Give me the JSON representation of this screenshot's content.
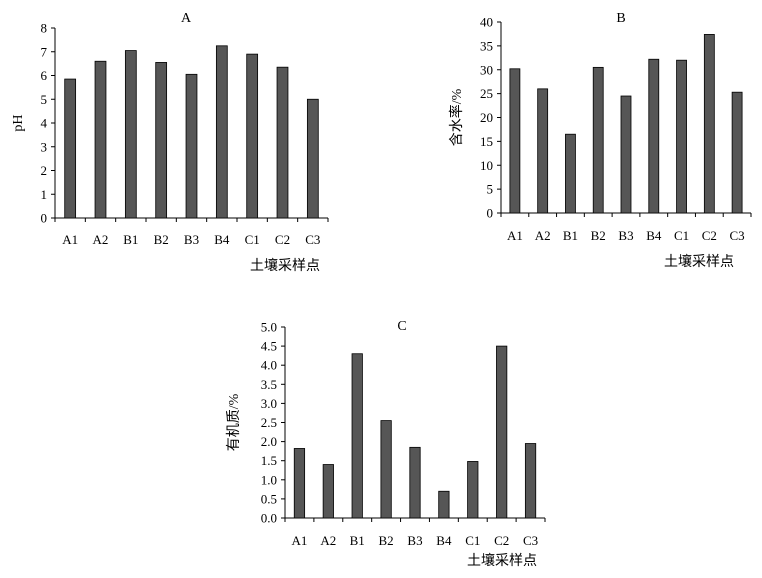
{
  "chart_data": [
    {
      "type": "bar",
      "title": "A",
      "xlabel": "土壤采样点",
      "ylabel": "pH",
      "categories": [
        "A1",
        "A2",
        "B1",
        "B2",
        "B3",
        "B4",
        "C1",
        "C2",
        "C3"
      ],
      "values": [
        5.85,
        6.6,
        7.05,
        6.55,
        6.05,
        7.25,
        6.9,
        6.35,
        5.0
      ],
      "ylim": [
        0,
        8
      ],
      "yticks": [
        "0",
        "1",
        "2",
        "3",
        "4",
        "5",
        "6",
        "7",
        "8"
      ],
      "bar_color": "#565656",
      "grid": false
    },
    {
      "type": "bar",
      "title": "B",
      "xlabel": "土壤采样点",
      "ylabel": "含水率/%",
      "categories": [
        "A1",
        "A2",
        "B1",
        "B2",
        "B3",
        "B4",
        "C1",
        "C2",
        "C3"
      ],
      "values": [
        30.2,
        26.0,
        16.5,
        30.5,
        24.5,
        32.2,
        32.0,
        37.4,
        25.3
      ],
      "ylim": [
        0,
        40
      ],
      "yticks": [
        "0",
        "5",
        "10",
        "15",
        "20",
        "25",
        "30",
        "35",
        "40"
      ],
      "bar_color": "#565656",
      "grid": false
    },
    {
      "type": "bar",
      "title": "C",
      "xlabel": "土壤采样点",
      "ylabel": "有机质/%",
      "categories": [
        "A1",
        "A2",
        "B1",
        "B2",
        "B3",
        "B4",
        "C1",
        "C2",
        "C3"
      ],
      "values": [
        1.82,
        1.4,
        4.3,
        2.55,
        1.85,
        0.7,
        1.48,
        4.5,
        1.95
      ],
      "ylim": [
        0,
        5
      ],
      "yticks": [
        "0.0",
        "0.5",
        "1.0",
        "1.5",
        "2.0",
        "2.5",
        "3.0",
        "3.5",
        "4.0",
        "4.5",
        "5.0"
      ],
      "bar_color": "#565656",
      "grid": false
    }
  ]
}
